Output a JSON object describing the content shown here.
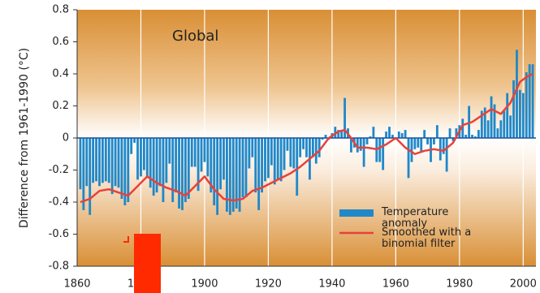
{
  "chart_data": {
    "type": "bar",
    "ylabel": "Difference from 1961-1990 (°C)",
    "annotation": "Global",
    "xlim": [
      1860,
      2004
    ],
    "xticks": [
      1860,
      1880,
      1900,
      1920,
      1940,
      1960,
      1980,
      2000
    ],
    "ylim": [
      -0.8,
      0.8
    ],
    "yticks": [
      0.8,
      0.6,
      0.4,
      0.2,
      0,
      -0.2,
      -0.4,
      -0.6,
      -0.8
    ],
    "grid": true,
    "series": [
      {
        "name": "Temperature anomaly",
        "type": "bar",
        "color": "#1f88c9",
        "x": [
          1861,
          1862,
          1863,
          1864,
          1865,
          1866,
          1867,
          1868,
          1869,
          1870,
          1871,
          1872,
          1873,
          1874,
          1875,
          1876,
          1877,
          1878,
          1879,
          1880,
          1881,
          1882,
          1883,
          1884,
          1885,
          1886,
          1887,
          1888,
          1889,
          1890,
          1891,
          1892,
          1893,
          1894,
          1895,
          1896,
          1897,
          1898,
          1899,
          1900,
          1901,
          1902,
          1903,
          1904,
          1905,
          1906,
          1907,
          1908,
          1909,
          1910,
          1911,
          1912,
          1913,
          1914,
          1915,
          1916,
          1917,
          1918,
          1919,
          1920,
          1921,
          1922,
          1923,
          1924,
          1925,
          1926,
          1927,
          1928,
          1929,
          1930,
          1931,
          1932,
          1933,
          1934,
          1935,
          1936,
          1937,
          1938,
          1939,
          1940,
          1941,
          1942,
          1943,
          1944,
          1945,
          1946,
          1947,
          1948,
          1949,
          1950,
          1951,
          1952,
          1953,
          1954,
          1955,
          1956,
          1957,
          1958,
          1959,
          1960,
          1961,
          1962,
          1963,
          1964,
          1965,
          1966,
          1967,
          1968,
          1969,
          1970,
          1971,
          1972,
          1973,
          1974,
          1975,
          1976,
          1977,
          1978,
          1979,
          1980,
          1981,
          1982,
          1983,
          1984,
          1985,
          1986,
          1987,
          1988,
          1989,
          1990,
          1991,
          1992,
          1993,
          1994,
          1995,
          1996,
          1997,
          1998,
          1999,
          2000,
          2001,
          2002,
          2003
        ],
        "values": [
          -0.32,
          -0.45,
          -0.3,
          -0.48,
          -0.28,
          -0.27,
          -0.3,
          -0.28,
          -0.27,
          -0.28,
          -0.35,
          -0.3,
          -0.31,
          -0.38,
          -0.42,
          -0.4,
          -0.1,
          -0.03,
          -0.26,
          -0.24,
          -0.2,
          -0.25,
          -0.31,
          -0.36,
          -0.34,
          -0.3,
          -0.4,
          -0.28,
          -0.16,
          -0.4,
          -0.34,
          -0.44,
          -0.45,
          -0.4,
          -0.38,
          -0.18,
          -0.18,
          -0.33,
          -0.21,
          -0.15,
          -0.24,
          -0.34,
          -0.42,
          -0.48,
          -0.32,
          -0.26,
          -0.46,
          -0.48,
          -0.46,
          -0.44,
          -0.46,
          -0.37,
          -0.37,
          -0.19,
          -0.12,
          -0.34,
          -0.45,
          -0.34,
          -0.27,
          -0.25,
          -0.17,
          -0.29,
          -0.26,
          -0.27,
          -0.2,
          -0.08,
          -0.18,
          -0.19,
          -0.36,
          -0.12,
          -0.07,
          -0.12,
          -0.26,
          -0.12,
          -0.16,
          -0.12,
          -0.01,
          0.02,
          -0.01,
          0.03,
          0.07,
          0.05,
          0.05,
          0.25,
          0.06,
          -0.09,
          -0.06,
          -0.09,
          -0.08,
          -0.18,
          -0.04,
          0.01,
          0.07,
          -0.15,
          -0.15,
          -0.2,
          0.04,
          0.07,
          0.02,
          -0.01,
          0.04,
          0.03,
          0.05,
          -0.25,
          -0.15,
          -0.07,
          -0.06,
          -0.09,
          0.05,
          -0.04,
          -0.15,
          -0.04,
          0.08,
          -0.14,
          -0.1,
          -0.21,
          0.06,
          -0.02,
          0.06,
          0.08,
          0.12,
          0.02,
          0.2,
          0.02,
          0.01,
          0.05,
          0.17,
          0.19,
          0.11,
          0.26,
          0.21,
          0.06,
          0.11,
          0.17,
          0.28,
          0.14,
          0.36,
          0.55,
          0.3,
          0.28,
          0.41,
          0.46,
          0.46
        ]
      },
      {
        "name": "Smoothed with a binomial filter",
        "type": "line",
        "color": "#e8413a",
        "x": [
          1861,
          1864,
          1867,
          1870,
          1873,
          1876,
          1879,
          1882,
          1885,
          1888,
          1891,
          1894,
          1897,
          1900,
          1903,
          1906,
          1909,
          1912,
          1915,
          1918,
          1921,
          1924,
          1927,
          1930,
          1933,
          1936,
          1939,
          1942,
          1944,
          1946,
          1948,
          1951,
          1954,
          1957,
          1960,
          1963,
          1966,
          1969,
          1972,
          1975,
          1978,
          1981,
          1984,
          1987,
          1990,
          1993,
          1996,
          1999,
          2001,
          2003
        ],
        "values": [
          -0.4,
          -0.38,
          -0.33,
          -0.32,
          -0.34,
          -0.36,
          -0.3,
          -0.24,
          -0.28,
          -0.31,
          -0.33,
          -0.36,
          -0.3,
          -0.24,
          -0.32,
          -0.38,
          -0.39,
          -0.38,
          -0.33,
          -0.31,
          -0.28,
          -0.25,
          -0.22,
          -0.18,
          -0.13,
          -0.08,
          0,
          0.04,
          0.05,
          0,
          -0.06,
          -0.06,
          -0.07,
          -0.04,
          0,
          -0.06,
          -0.1,
          -0.08,
          -0.07,
          -0.08,
          -0.03,
          0.08,
          0.1,
          0.14,
          0.18,
          0.15,
          0.22,
          0.35,
          0.38,
          0.4
        ]
      }
    ]
  }
}
